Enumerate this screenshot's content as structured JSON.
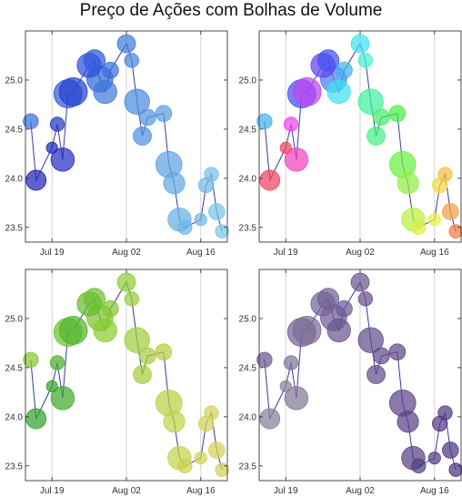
{
  "title": "Preço de Ações com Bolhas de Volume",
  "chart_data": [
    {
      "type": "scatter",
      "title": "",
      "xlabel": "",
      "ylabel": "",
      "color_scheme": "blue",
      "xlim": [
        "2021-07-14",
        "2021-08-21"
      ],
      "ylim": [
        23.35,
        25.5
      ],
      "x_ticks": [
        "2021-07-19",
        "2021-08-02",
        "2021-08-16"
      ],
      "x_tick_labels": [
        "Jul 19",
        "Aug 02",
        "Aug 16"
      ],
      "y_ticks": [
        23.5,
        24.0,
        24.5,
        25.0
      ],
      "y_tick_labels": [
        "23.5",
        "24.0",
        "24.5",
        "25.0"
      ],
      "grid_x": true,
      "grid_y": false
    },
    {
      "type": "scatter",
      "title": "",
      "xlabel": "",
      "ylabel": "",
      "color_scheme": "rainbow",
      "xlim": [
        "2021-07-14",
        "2021-08-21"
      ],
      "ylim": [
        23.35,
        25.5
      ],
      "x_ticks": [
        "2021-07-19",
        "2021-08-02",
        "2021-08-16"
      ],
      "x_tick_labels": [
        "Jul 19",
        "Aug 02",
        "Aug 16"
      ],
      "y_ticks": [
        23.5,
        24.0,
        24.5,
        25.0
      ],
      "y_tick_labels": [
        "23.5",
        "24.0",
        "24.5",
        "25.0"
      ],
      "grid_x": true,
      "grid_y": false
    },
    {
      "type": "scatter",
      "title": "",
      "xlabel": "",
      "ylabel": "",
      "color_scheme": "green-yellow",
      "xlim": [
        "2021-07-14",
        "2021-08-21"
      ],
      "ylim": [
        23.35,
        25.5
      ],
      "x_ticks": [
        "2021-07-19",
        "2021-08-02",
        "2021-08-16"
      ],
      "x_tick_labels": [
        "Jul 19",
        "Aug 02",
        "Aug 16"
      ],
      "y_ticks": [
        23.5,
        24.0,
        24.5,
        25.0
      ],
      "y_tick_labels": [
        "23.5",
        "24.0",
        "24.5",
        "25.0"
      ],
      "grid_x": true,
      "grid_y": false
    },
    {
      "type": "scatter",
      "title": "",
      "xlabel": "",
      "ylabel": "",
      "color_scheme": "grey-purple",
      "xlim": [
        "2021-07-14",
        "2021-08-21"
      ],
      "ylim": [
        23.35,
        25.5
      ],
      "x_ticks": [
        "2021-07-19",
        "2021-08-02",
        "2021-08-16"
      ],
      "x_tick_labels": [
        "Jul 19",
        "Aug 02",
        "Aug 16"
      ],
      "y_ticks": [
        23.5,
        24.0,
        24.5,
        25.0
      ],
      "y_tick_labels": [
        "23.5",
        "24.0",
        "24.5",
        "25.0"
      ],
      "grid_x": true,
      "grid_y": false
    }
  ],
  "series": {
    "dates": [
      "2021-07-15",
      "2021-07-16",
      "2021-07-19",
      "2021-07-20",
      "2021-07-21",
      "2021-07-22",
      "2021-07-23",
      "2021-07-26",
      "2021-07-27",
      "2021-07-28",
      "2021-07-29",
      "2021-07-30",
      "2021-08-02",
      "2021-08-03",
      "2021-08-04",
      "2021-08-05",
      "2021-08-06",
      "2021-08-09",
      "2021-08-10",
      "2021-08-11",
      "2021-08-12",
      "2021-08-13",
      "2021-08-16",
      "2021-08-17",
      "2021-08-18",
      "2021-08-19",
      "2021-08-20"
    ],
    "price": [
      24.58,
      23.98,
      24.31,
      24.55,
      24.19,
      24.86,
      24.88,
      25.15,
      25.2,
      25.01,
      24.88,
      25.1,
      25.37,
      25.2,
      24.78,
      24.43,
      24.62,
      24.66,
      24.14,
      23.95,
      23.58,
      23.5,
      23.58,
      23.93,
      24.04,
      23.66,
      23.46
    ],
    "volume": [
      0.35,
      0.6,
      0.15,
      0.3,
      0.75,
      1.0,
      1.0,
      0.8,
      0.65,
      0.9,
      0.75,
      0.4,
      0.5,
      0.3,
      0.85,
      0.5,
      0.4,
      0.4,
      0.9,
      0.65,
      0.75,
      0.3,
      0.2,
      0.35,
      0.3,
      0.4,
      0.25
    ],
    "color_value": [
      0.45,
      0.0,
      0.0,
      0.15,
      0.1,
      0.35,
      0.2,
      0.3,
      0.35,
      0.4,
      0.5,
      0.45,
      0.5,
      0.55,
      0.6,
      0.63,
      0.66,
      0.7,
      0.74,
      0.78,
      0.82,
      0.86,
      0.88,
      0.9,
      0.93,
      0.96,
      1.0
    ]
  }
}
